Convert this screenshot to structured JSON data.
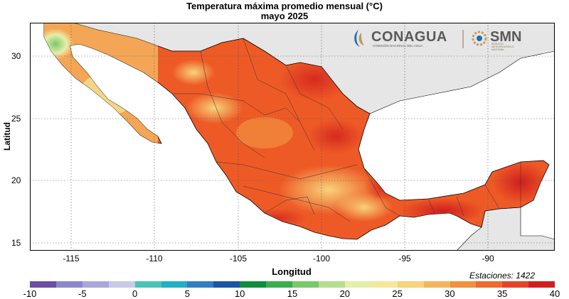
{
  "title": "Temperatura máxima promedio mensual (°C)",
  "subtitle": "mayo 2025",
  "xlabel": "Longitud",
  "ylabel": "Latitud",
  "x_ticks": [
    "-115",
    "-110",
    "-105",
    "-100",
    "-95",
    "-90"
  ],
  "y_ticks": [
    "30",
    "25",
    "20",
    "15"
  ],
  "stations": "Estaciones:  1422",
  "colorbar": {
    "ticks": [
      "-10",
      "-5",
      "0",
      "5",
      "10",
      "15",
      "20",
      "25",
      "30",
      "35",
      "40"
    ],
    "colors": [
      "#6a4fa3",
      "#8a88c8",
      "#a9a8d8",
      "#c9c9e8",
      "#49c3b8",
      "#1fb0c4",
      "#2f7fc1",
      "#1b56a6",
      "#0d8f3f",
      "#3aad4e",
      "#78c96b",
      "#b4dd8c",
      "#e5eeaa",
      "#f6e89a",
      "#f7d37a",
      "#f4b45f",
      "#f1903e",
      "#ef6a2e",
      "#e6442a",
      "#d01e1e"
    ]
  },
  "logos": {
    "conagua": "CONAGUA",
    "conagua_sub": "COMISIÓN NACIONAL DEL AGUA",
    "smn": "SMN",
    "smn_sub1": "SERVICIO",
    "smn_sub2": "METEOROLÓGICO",
    "smn_sub3": "NACIONAL"
  },
  "map": {
    "lon_range": [
      -117.5,
      -86
    ],
    "lat_range": [
      14.5,
      32.8
    ],
    "land_color": "#ee5a26",
    "foreign_land_color": "#e6e6e6",
    "water_color": "#ffffff"
  }
}
